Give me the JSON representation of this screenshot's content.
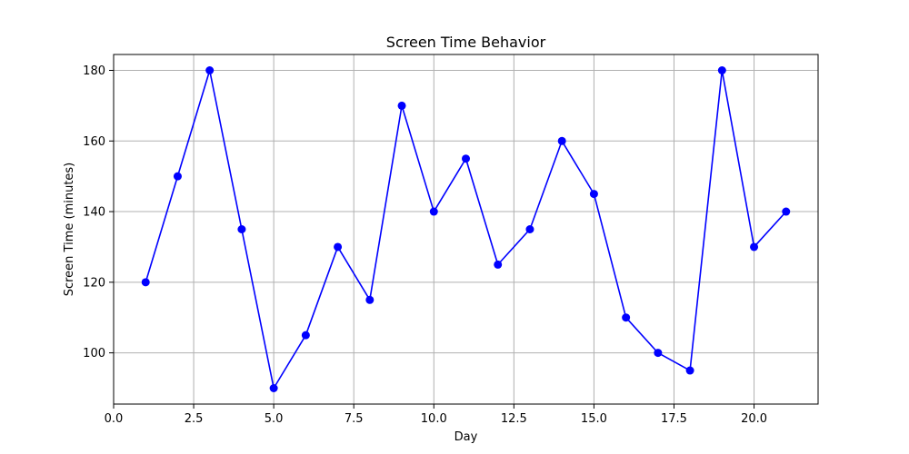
{
  "chart_data": {
    "type": "line",
    "title": "Screen Time Behavior",
    "xlabel": "Day",
    "ylabel": "Screen Time (minutes)",
    "xlim": [
      0,
      22
    ],
    "ylim": [
      85.5,
      184.5
    ],
    "grid": true,
    "x_ticks": [
      "0.0",
      "2.5",
      "5.0",
      "7.5",
      "10.0",
      "12.5",
      "15.0",
      "17.5",
      "20.0"
    ],
    "y_ticks": [
      "100",
      "120",
      "140",
      "160",
      "180"
    ],
    "series": [
      {
        "color": "#0000ff",
        "marker": "circle",
        "x": [
          1,
          2,
          3,
          4,
          5,
          6,
          7,
          8,
          9,
          10,
          11,
          12,
          13,
          14,
          15,
          16,
          17,
          18,
          19,
          20,
          21
        ],
        "values": [
          120,
          150,
          180,
          135,
          90,
          105,
          130,
          115,
          170,
          140,
          155,
          125,
          135,
          160,
          145,
          110,
          100,
          95,
          180,
          130,
          140
        ]
      }
    ]
  }
}
